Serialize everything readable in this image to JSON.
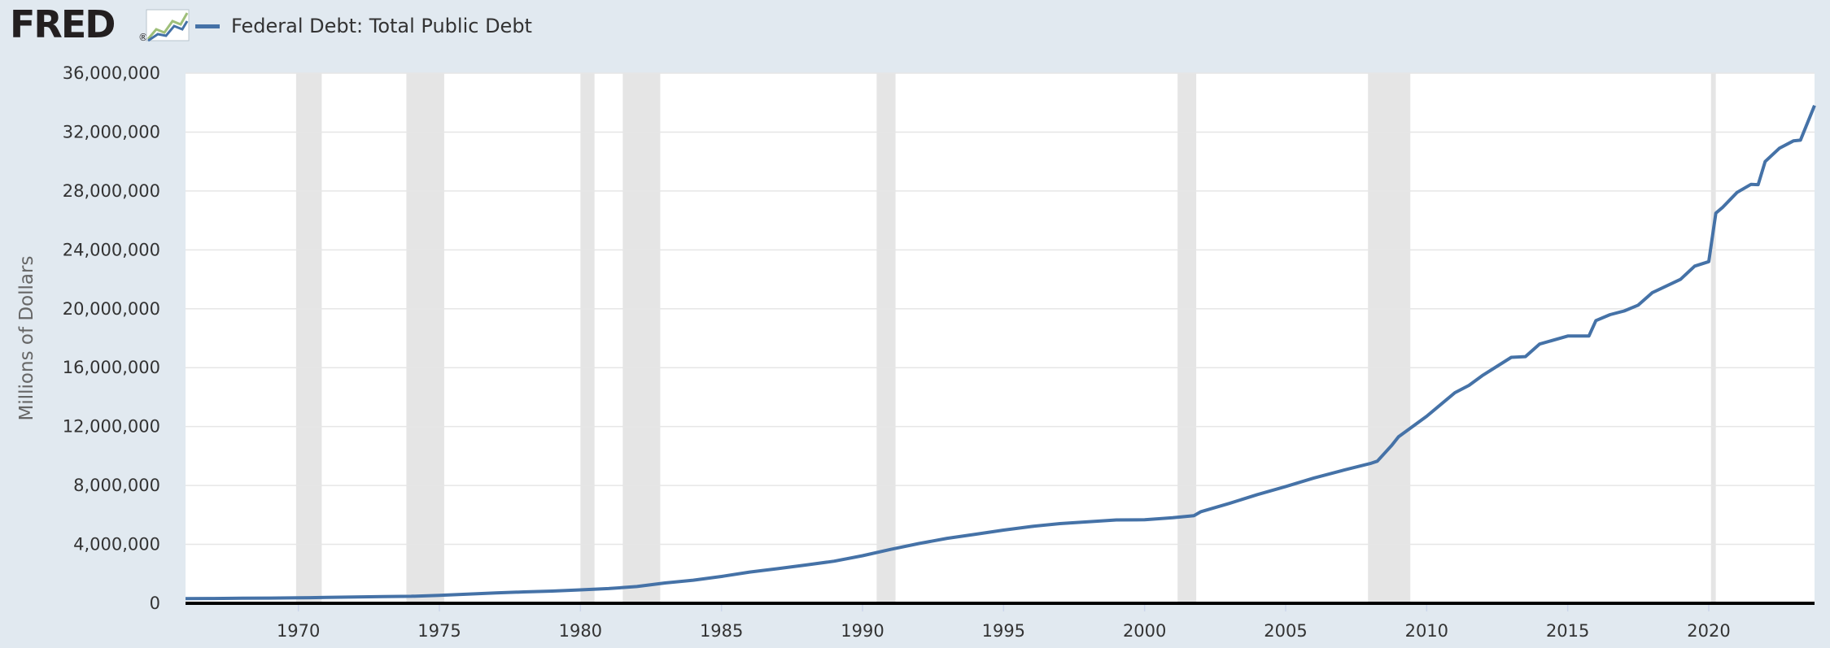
{
  "logo": {
    "text": "FRED",
    "registered": "®",
    "icon": "fred-chart-icon"
  },
  "colors": {
    "background": "#e1e9f0",
    "plot_background": "#ffffff",
    "series": "#4572a7",
    "recession": "#e5e5e5",
    "grid": "#e6e6e6",
    "axis": "#000000"
  },
  "chart_data": {
    "type": "line",
    "title": "",
    "xlabel": "",
    "ylabel": "Millions of Dollars",
    "xlim": [
      1966.0,
      2023.75
    ],
    "ylim": [
      0,
      36000000
    ],
    "grid": true,
    "legend_position": "top-left",
    "y_ticks": [
      0,
      4000000,
      8000000,
      12000000,
      16000000,
      20000000,
      24000000,
      28000000,
      32000000,
      36000000
    ],
    "y_tick_labels": [
      "0",
      "4,000,000",
      "8,000,000",
      "12,000,000",
      "16,000,000",
      "20,000,000",
      "24,000,000",
      "28,000,000",
      "32,000,000",
      "36,000,000"
    ],
    "x_ticks": [
      1970,
      1975,
      1980,
      1985,
      1990,
      1995,
      2000,
      2005,
      2010,
      2015,
      2020
    ],
    "x_tick_labels": [
      "1970",
      "1975",
      "1980",
      "1985",
      "1990",
      "1995",
      "2000",
      "2005",
      "2010",
      "2015",
      "2020"
    ],
    "recessions": [
      [
        1969.92,
        1970.83
      ],
      [
        1973.83,
        1975.17
      ],
      [
        1980.0,
        1980.5
      ],
      [
        1981.5,
        1982.83
      ],
      [
        1990.5,
        1991.17
      ],
      [
        2001.17,
        2001.83
      ],
      [
        2007.92,
        2009.42
      ],
      [
        2020.08,
        2020.25
      ]
    ],
    "series": [
      {
        "name": "Federal Debt: Total Public Debt",
        "x": [
          1966.0,
          1967.0,
          1968.0,
          1969.0,
          1970.0,
          1971.0,
          1972.0,
          1973.0,
          1974.0,
          1975.0,
          1976.0,
          1977.0,
          1978.0,
          1979.0,
          1980.0,
          1981.0,
          1982.0,
          1983.0,
          1984.0,
          1985.0,
          1986.0,
          1987.0,
          1988.0,
          1989.0,
          1990.0,
          1991.0,
          1992.0,
          1993.0,
          1994.0,
          1995.0,
          1996.0,
          1997.0,
          1998.0,
          1999.0,
          2000.0,
          2001.0,
          2001.75,
          2002.0,
          2003.0,
          2004.0,
          2005.0,
          2006.0,
          2007.0,
          2008.0,
          2008.25,
          2008.75,
          2009.0,
          2010.0,
          2011.0,
          2011.5,
          2012.0,
          2013.0,
          2013.5,
          2014.0,
          2015.0,
          2015.75,
          2016.0,
          2016.5,
          2017.0,
          2017.5,
          2018.0,
          2019.0,
          2019.5,
          2020.0,
          2020.25,
          2020.5,
          2021.0,
          2021.5,
          2021.75,
          2022.0,
          2022.5,
          2023.0,
          2023.25,
          2023.75
        ],
        "values": [
          320000,
          326000,
          348000,
          354000,
          370000,
          398000,
          427000,
          458000,
          475000,
          533000,
          620000,
          699000,
          772000,
          829000,
          909000,
          998000,
          1140000,
          1380000,
          1570000,
          1820000,
          2120000,
          2350000,
          2600000,
          2860000,
          3230000,
          3660000,
          4060000,
          4410000,
          4690000,
          4970000,
          5220000,
          5410000,
          5530000,
          5660000,
          5670000,
          5810000,
          5950000,
          6220000,
          6780000,
          7380000,
          7930000,
          8510000,
          9010000,
          9490000,
          9650000,
          10700000,
          11300000,
          12700000,
          14300000,
          14800000,
          15500000,
          16700000,
          16750000,
          17600000,
          18150000,
          18150000,
          19200000,
          19600000,
          19850000,
          20250000,
          21100000,
          22000000,
          22900000,
          23200000,
          26500000,
          26900000,
          27900000,
          28450000,
          28430000,
          30000000,
          30900000,
          31400000,
          31450000,
          33800000
        ]
      }
    ]
  }
}
